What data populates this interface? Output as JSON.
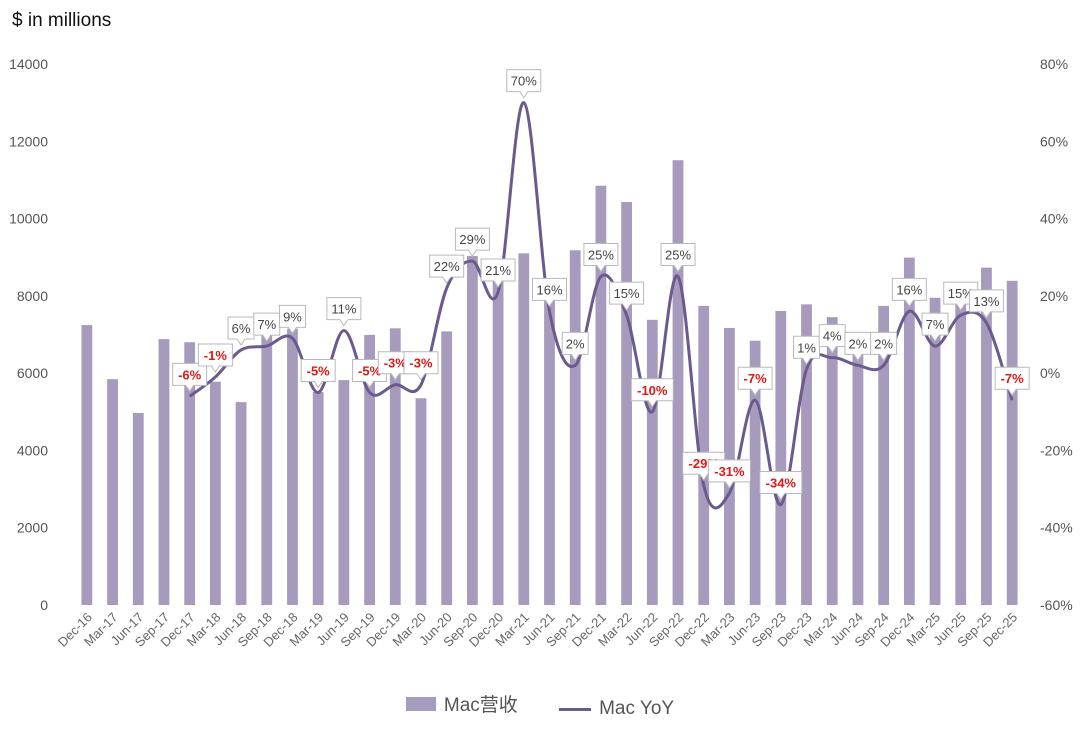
{
  "chart_data": {
    "type": "bar",
    "unit_label": "$ in millions",
    "categories": [
      "Dec-16",
      "Mar-17",
      "Jun-17",
      "Sep-17",
      "Dec-17",
      "Mar-18",
      "Jun-18",
      "Sep-18",
      "Dec-18",
      "Mar-19",
      "Jun-19",
      "Sep-19",
      "Dec-19",
      "Mar-20",
      "Jun-20",
      "Sep-20",
      "Dec-20",
      "Mar-21",
      "Jun-21",
      "Sep-21",
      "Dec-21",
      "Mar-22",
      "Jun-22",
      "Sep-22",
      "Dec-22",
      "Mar-23",
      "Jun-23",
      "Sep-23",
      "Dec-23",
      "Mar-24",
      "Jun-24",
      "Sep-24",
      "Dec-24",
      "Mar-25",
      "Jun-25",
      "Sep-25",
      "Dec-25"
    ],
    "series": [
      {
        "name": "Mac营收",
        "kind": "bar",
        "axis": "left",
        "color": "#a69bbd",
        "values": [
          7244,
          5844,
          4970,
          6880,
          6800,
          5780,
          5250,
          7280,
          7150,
          5510,
          5820,
          6990,
          7160,
          5350,
          7080,
          9030,
          8680,
          9100,
          8240,
          9180,
          10850,
          10430,
          7380,
          11510,
          7740,
          7170,
          6840,
          7610,
          7780,
          7450,
          7010,
          7740,
          8990,
          7950,
          8050,
          8730,
          8390
        ]
      },
      {
        "name": "Mac YoY",
        "kind": "line",
        "axis": "right",
        "color": "#6a5a8e",
        "values": [
          null,
          null,
          null,
          null,
          -6,
          -1,
          6,
          7,
          9,
          -5,
          11,
          -5,
          -3,
          -3,
          22,
          29,
          21,
          70,
          16,
          2,
          25,
          15,
          -10,
          25,
          -29,
          -31,
          -7,
          -34,
          1,
          4,
          2,
          2,
          16,
          7,
          15,
          13,
          -7
        ],
        "data_labels": [
          null,
          null,
          null,
          null,
          "-6%",
          "-1%",
          "6%",
          "7%",
          "9%",
          "-5%",
          "11%",
          "-5%",
          "-3%",
          "-3%",
          "22%",
          "29%",
          "21%",
          "70%",
          "16%",
          "2%",
          "25%",
          "15%",
          "-10%",
          "25%",
          "-29%",
          "-31%",
          "-7%",
          "-34%",
          "1%",
          "4%",
          "2%",
          "2%",
          "16%",
          "7%",
          "15%",
          "13%",
          "-7%"
        ]
      }
    ],
    "yaxis_left": {
      "min": 0,
      "max": 14000,
      "ticks": [
        "0",
        "2000",
        "4000",
        "6000",
        "8000",
        "10000",
        "12000",
        "14000"
      ]
    },
    "yaxis_right": {
      "min": -60,
      "max": 80,
      "ticks": [
        "-60%",
        "-40%",
        "-20%",
        "0%",
        "20%",
        "40%",
        "60%",
        "80%"
      ]
    },
    "grid": false,
    "legend_position": "bottom",
    "negative_label_color": "#e01818",
    "positive_label_color": "#444444"
  }
}
